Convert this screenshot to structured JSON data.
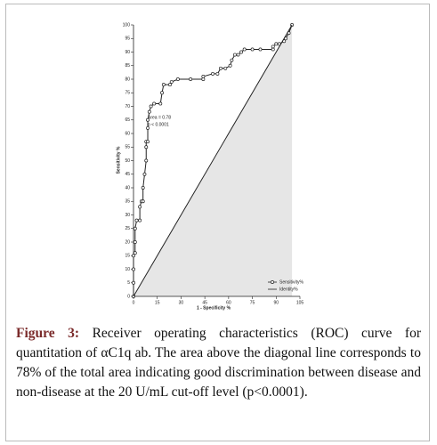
{
  "chart_data": {
    "type": "line",
    "xlabel": "1 - Specificity %",
    "ylabel": "Sensitivity %",
    "xlim": [
      0,
      105
    ],
    "xticks": [
      0,
      15,
      30,
      45,
      60,
      75,
      90,
      105
    ],
    "ylim": [
      0,
      100
    ],
    "yticks": [
      0,
      5,
      10,
      15,
      20,
      25,
      30,
      35,
      40,
      45,
      50,
      55,
      60,
      65,
      70,
      75,
      80,
      85,
      90,
      95,
      100
    ],
    "annotations": [
      "Area = 0.78",
      "p < 0.0001"
    ],
    "legend": "lower right",
    "series": [
      {
        "name": "Sensitivity%",
        "color": "#222222",
        "markers": true,
        "x": [
          0,
          0,
          0,
          0,
          1,
          1,
          1,
          2,
          4,
          4,
          5,
          6,
          6,
          7,
          8,
          8,
          8,
          9,
          9,
          9,
          10,
          11,
          13,
          17,
          18,
          19,
          23,
          24,
          28,
          36,
          44,
          44,
          50,
          53,
          55,
          58,
          61,
          62,
          64,
          66,
          68,
          70,
          75,
          80,
          88,
          88,
          90,
          92,
          95,
          96,
          98,
          100
        ],
        "values": [
          0,
          5,
          10,
          15,
          16,
          20,
          25,
          28,
          28,
          33,
          35,
          35,
          40,
          45,
          50,
          55,
          57,
          57,
          62,
          65,
          68,
          70,
          71,
          71,
          75,
          78,
          78,
          79,
          80,
          80,
          80,
          81,
          82,
          82,
          84,
          84,
          85,
          87,
          89,
          89,
          90,
          91,
          91,
          91,
          91,
          92,
          93,
          93,
          94,
          95,
          97,
          100
        ]
      },
      {
        "name": "Identity%",
        "color": "#222222",
        "markers": false,
        "x": [
          0,
          100
        ],
        "values": [
          0,
          100
        ]
      }
    ]
  },
  "caption": {
    "label": "Figure 3:",
    "text": "Receiver operating characteristics (ROC) curve for quantitation of αC1q ab. The area above the diagonal line corresponds to 78% of the total area indicating good discrimination between disease and non-disease at the 20 U/mL cut-off level (p<0.0001)."
  }
}
